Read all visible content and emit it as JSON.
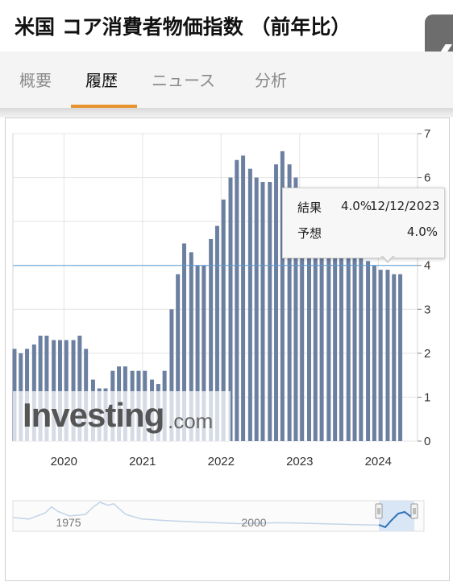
{
  "header": {
    "title": "米国 コア消費者物価指数 （前年比）",
    "collapse_glyph": "❮"
  },
  "tabs": [
    {
      "label": "概要",
      "active": false
    },
    {
      "label": "履歴",
      "active": true
    },
    {
      "label": "ニュース",
      "active": false
    },
    {
      "label": "分析",
      "active": false
    }
  ],
  "tooltip": {
    "actual_label": "結果",
    "actual_value": "4.0%",
    "date": "12/12/2023",
    "forecast_label": "予想",
    "forecast_value": "4.0%"
  },
  "watermark": {
    "brand": "Investing",
    "suffix": ".com"
  },
  "colors": {
    "bar": "#6b7fa0",
    "reference_line": "#5b9bd5",
    "active_tab": "#e89330",
    "navigator_fill": "#d9e6f5"
  },
  "chart_data": {
    "type": "bar",
    "title": "",
    "xlabel": "",
    "ylabel": "",
    "y_axis_side": "right",
    "ylim": [
      0,
      7
    ],
    "yticks": [
      0,
      1,
      2,
      3,
      4,
      5,
      6,
      7
    ],
    "x_tick_labels": [
      "2020",
      "2021",
      "2022",
      "2023",
      "2024"
    ],
    "x_tick_positions": [
      2020,
      2021,
      2022,
      2023,
      2024
    ],
    "xlim": [
      2019.35,
      2024.5
    ],
    "reference_line_value": 4.0,
    "highlighted_point": {
      "date": "12/12/2023",
      "actual": 4.0,
      "forecast": 4.0
    },
    "grid": true,
    "x": [
      2019.37,
      2019.45,
      2019.53,
      2019.62,
      2019.7,
      2019.78,
      2019.87,
      2019.95,
      2020.03,
      2020.12,
      2020.2,
      2020.28,
      2020.37,
      2020.45,
      2020.53,
      2020.62,
      2020.7,
      2020.78,
      2020.87,
      2020.95,
      2021.03,
      2021.12,
      2021.2,
      2021.28,
      2021.37,
      2021.45,
      2021.53,
      2021.62,
      2021.7,
      2021.78,
      2021.87,
      2021.95,
      2022.03,
      2022.12,
      2022.2,
      2022.28,
      2022.37,
      2022.45,
      2022.53,
      2022.62,
      2022.7,
      2022.78,
      2022.87,
      2022.95,
      2023.03,
      2023.12,
      2023.2,
      2023.28,
      2023.37,
      2023.45,
      2023.53,
      2023.62,
      2023.7,
      2023.78,
      2023.87,
      2023.95,
      2024.03,
      2024.12,
      2024.2,
      2024.28
    ],
    "values": [
      2.1,
      2.0,
      2.1,
      2.2,
      2.4,
      2.4,
      2.3,
      2.3,
      2.3,
      2.3,
      2.4,
      2.1,
      1.4,
      1.2,
      1.2,
      1.6,
      1.7,
      1.7,
      1.6,
      1.6,
      1.6,
      1.4,
      1.3,
      1.6,
      3.0,
      3.8,
      4.5,
      4.3,
      4.0,
      4.0,
      4.6,
      4.9,
      5.5,
      6.0,
      6.4,
      6.5,
      6.2,
      6.0,
      5.9,
      5.9,
      6.3,
      6.6,
      6.3,
      6.0,
      5.7,
      5.6,
      5.5,
      5.3,
      5.6,
      5.5,
      4.8,
      4.7,
      4.4,
      4.3,
      4.1,
      4.0,
      3.9,
      3.9,
      3.8,
      3.8
    ],
    "navigator": {
      "labels": [
        "1975",
        "2000"
      ]
    }
  }
}
